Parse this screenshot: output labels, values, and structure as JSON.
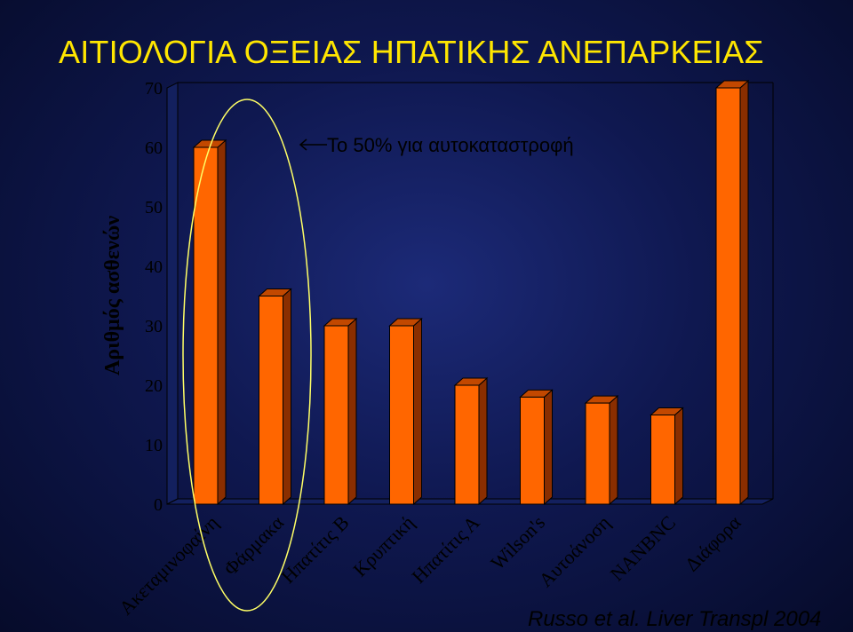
{
  "chart_data": {
    "type": "bar",
    "title": "ΑΙΤΙΟΛΟΓΙΑ ΟΞΕΙΑΣ ΗΠΑΤΙΚΗΣ ΑΝΕΠΑΡΚΕΙΑΣ",
    "ylabel": "Αριθμός ασθενών",
    "xlabel": "",
    "ylim": [
      0,
      70
    ],
    "yticks": [
      0,
      10,
      20,
      30,
      40,
      50,
      60,
      70
    ],
    "categories": [
      "Ακεταμινοφαίνη",
      "Φάρμακα",
      "Ηπατίτις Β",
      "Κρυπτική",
      "Ηπατίτις Α",
      "Wilson's",
      "Αυτοάνοση",
      "NANBNC",
      "Διάφορα"
    ],
    "values": [
      60,
      35,
      30,
      30,
      20,
      18,
      17,
      15,
      70
    ],
    "bar_color": "#ff6600",
    "grid": false,
    "annotation": "Το 50% για αυτοκαταστροφή",
    "highlighted_categories": [
      "Ακεταμινοφαίνη",
      "Φάρμακα"
    ],
    "highlight_color": "#ffff66",
    "source": "Russo et al. Liver Transpl 2004"
  }
}
